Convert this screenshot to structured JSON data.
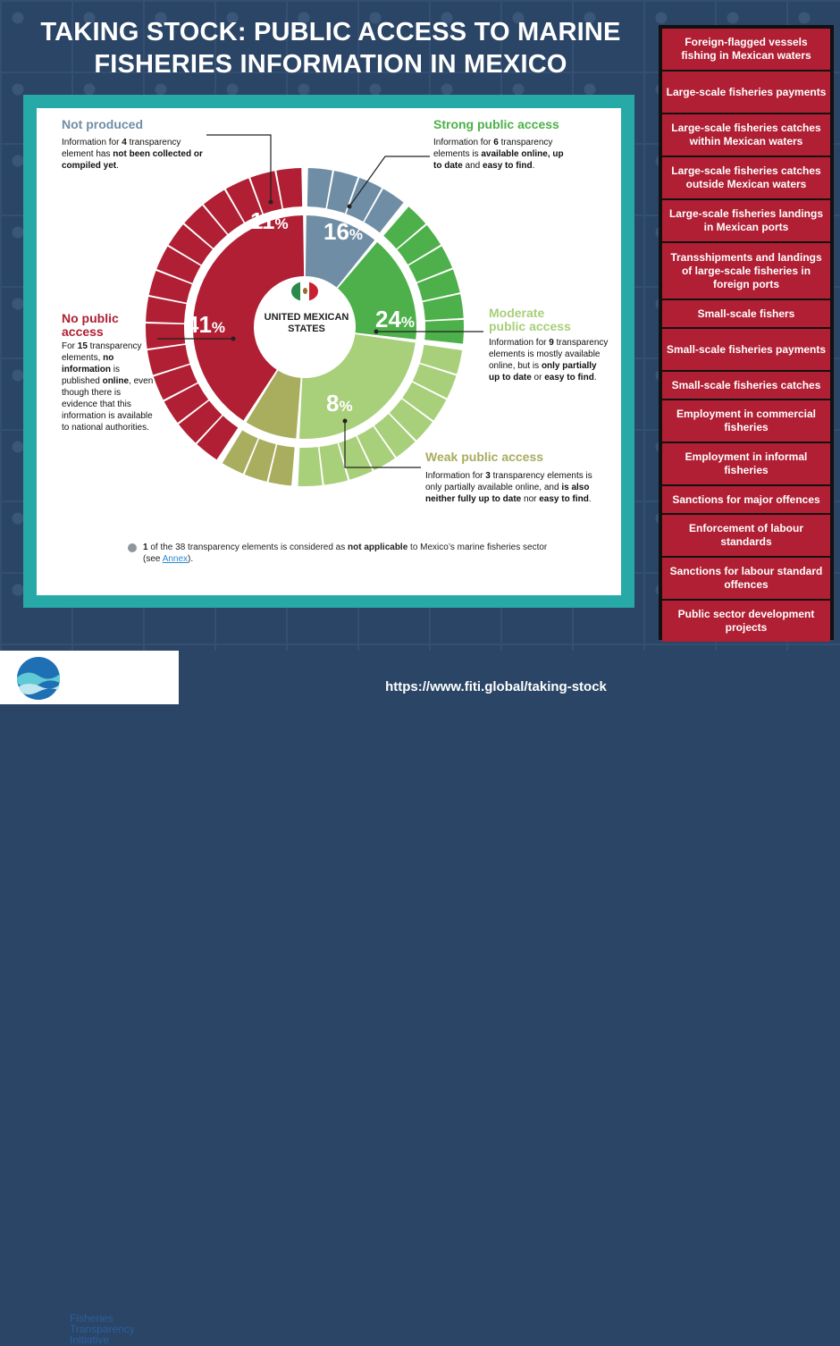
{
  "title": "TAKING STOCK: PUBLIC ACCESS TO MARINE FISHERIES INFORMATION IN MEXICO",
  "center_label": "UNITED MEXICAN STATES",
  "colors": {
    "not_produced": "#6f8ea5",
    "strong": "#4db04a",
    "moderate": "#a8cf79",
    "weak": "#a9ad5e",
    "none": "#b01f33",
    "panel": "#27a9a7",
    "background": "#2b4566"
  },
  "labels": {
    "not_produced": {
      "head": "Not produced",
      "desc_parts": [
        "Information for ",
        "4",
        " transparency element has ",
        "not been collected or compiled yet",
        "."
      ]
    },
    "strong": {
      "head": "Strong public access",
      "desc_parts": [
        "Information for ",
        "6",
        " transparency elements is ",
        "available online, up to date",
        " and ",
        "easy to find",
        "."
      ]
    },
    "moderate": {
      "head_line1": "Moderate",
      "head_line2": "public access",
      "desc_parts": [
        "Information for ",
        "9",
        " transparency elements is mostly available online, but is ",
        "only partially up to date",
        " or ",
        "easy to find",
        "."
      ]
    },
    "weak": {
      "head": "Weak public access",
      "desc_parts": [
        "Information for ",
        "3",
        " transparency elements is only partially available online, and ",
        "is also neither fully up to date",
        " nor ",
        "easy to find",
        "."
      ]
    },
    "none": {
      "head_line1": "No public",
      "head_line2": "access",
      "desc_parts": [
        "For ",
        "15",
        " transparency elements, ",
        "no information",
        " is published ",
        "online",
        ", even though there is evidence that this information is available to national authorities."
      ]
    }
  },
  "note": {
    "count": "1",
    "text_a": " of the 38 transparency elements is considered as ",
    "bold": "not applicable",
    "text_b": " to Mexico’s marine fisheries sector (see ",
    "link": "Annex",
    "text_c": ")."
  },
  "chart_data": {
    "type": "pie",
    "style": "donut-with-segmented-outer-ring",
    "categories": [
      "Not produced",
      "Strong public access",
      "Moderate public access",
      "Weak public access",
      "No public access"
    ],
    "values": [
      11,
      16,
      24,
      8,
      41
    ],
    "value_suffix": "%",
    "element_counts": [
      4,
      6,
      9,
      3,
      15
    ]
  },
  "elements_list": [
    "Foreign-flagged vessels fishing in Mexican waters",
    "Large-scale fisheries payments",
    "Large-scale fisheries catches within Mexican waters",
    "Large-scale fisheries catches outside Mexican waters",
    "Large-scale fisheries landings in Mexican ports",
    "Transshipments and landings of large-scale fisheries in foreign ports",
    "Small-scale fishers",
    "Small-scale fisheries payments",
    "Small-scale fisheries catches",
    "Employment in commercial fisheries",
    "Employment in informal fisheries",
    "Sanctions for major offences",
    "Enforcement of labour standards",
    "Sanctions for labour standard offences",
    "Public sector development projects"
  ],
  "footer": {
    "logo_line1": "Fisheries",
    "logo_line2": "Transparency",
    "logo_line3": "Initiative",
    "url": "https://www.fiti.global/taking-stock"
  }
}
